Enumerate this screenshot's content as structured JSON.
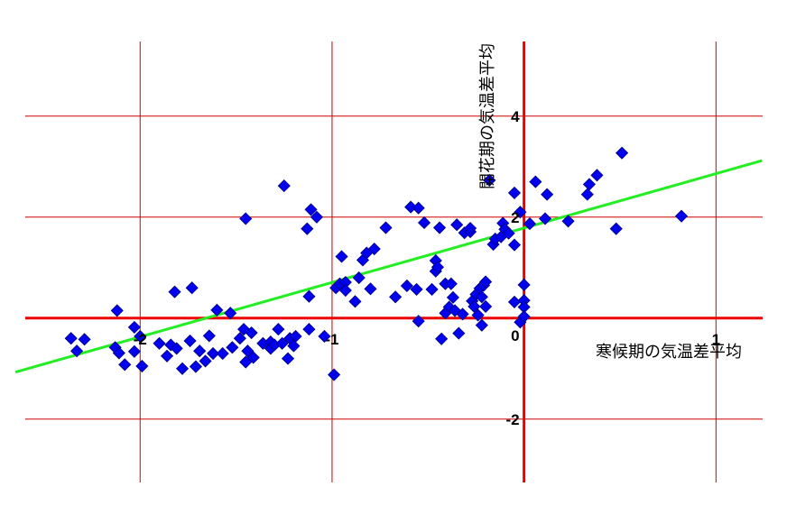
{
  "chart_data": {
    "type": "scatter",
    "title": "",
    "xlabel": "寒候期の気温差平均",
    "ylabel": "開花期の気温差平均",
    "xlim": [
      -2.73,
      1.37
    ],
    "ylim": [
      -3.7,
      6.3
    ],
    "x_ticks": [
      {
        "value": -2,
        "label": "-2"
      },
      {
        "value": -1,
        "label": "-1"
      },
      {
        "value": 0,
        "label": "0"
      },
      {
        "value": 1,
        "label": "1"
      }
    ],
    "y_ticks": [
      {
        "value": -2,
        "label": "-2"
      },
      {
        "value": 0,
        "label": "0"
      },
      {
        "value": 2,
        "label": "2"
      },
      {
        "value": 4,
        "label": "4"
      }
    ],
    "grid": true,
    "grid_x": [
      -2,
      -1,
      0,
      1
    ],
    "grid_y": [
      -2,
      0,
      2,
      4
    ],
    "colors": {
      "points": "#0000ee",
      "point_edge": "#000080",
      "trend": "#22ee22",
      "grid": "#cc0000",
      "axes": "#ee0000"
    },
    "trendline": {
      "x": [
        -2.65,
        1.24
      ],
      "y": [
        -1.07,
        3.12
      ]
    },
    "points": [
      {
        "x": -2.36,
        "y": -0.4
      },
      {
        "x": -2.33,
        "y": -0.65
      },
      {
        "x": -2.29,
        "y": -0.42
      },
      {
        "x": -2.13,
        "y": -0.58
      },
      {
        "x": -2.11,
        "y": -0.69
      },
      {
        "x": -2.12,
        "y": 0.15
      },
      {
        "x": -2.08,
        "y": -0.92
      },
      {
        "x": -2.03,
        "y": -0.18
      },
      {
        "x": -2.03,
        "y": -0.66
      },
      {
        "x": -2.0,
        "y": -0.36
      },
      {
        "x": -1.99,
        "y": -0.95
      },
      {
        "x": -1.9,
        "y": -0.5
      },
      {
        "x": -1.86,
        "y": -0.75
      },
      {
        "x": -1.84,
        "y": -0.53
      },
      {
        "x": -1.82,
        "y": 0.52
      },
      {
        "x": -1.81,
        "y": -0.6
      },
      {
        "x": -1.78,
        "y": -1.0
      },
      {
        "x": -1.73,
        "y": 0.6
      },
      {
        "x": -1.74,
        "y": -0.45
      },
      {
        "x": -1.71,
        "y": -0.96
      },
      {
        "x": -1.69,
        "y": -0.65
      },
      {
        "x": -1.66,
        "y": -0.85
      },
      {
        "x": -1.64,
        "y": -0.35
      },
      {
        "x": -1.62,
        "y": -0.7
      },
      {
        "x": -1.6,
        "y": 0.16
      },
      {
        "x": -1.57,
        "y": -0.7
      },
      {
        "x": -1.53,
        "y": 0.1
      },
      {
        "x": -1.52,
        "y": -0.58
      },
      {
        "x": -1.48,
        "y": -0.4
      },
      {
        "x": -1.46,
        "y": -0.22
      },
      {
        "x": -1.44,
        "y": -0.65
      },
      {
        "x": -1.42,
        "y": -0.29
      },
      {
        "x": -1.41,
        "y": -0.78
      },
      {
        "x": -1.36,
        "y": -0.5
      },
      {
        "x": -1.32,
        "y": -0.47
      },
      {
        "x": -1.45,
        "y": -0.87
      },
      {
        "x": -1.45,
        "y": 1.97
      },
      {
        "x": -1.32,
        "y": -0.6
      },
      {
        "x": -1.3,
        "y": -0.53
      },
      {
        "x": -1.28,
        "y": -0.22
      },
      {
        "x": -1.26,
        "y": -0.5
      },
      {
        "x": -1.25,
        "y": 2.62
      },
      {
        "x": -1.23,
        "y": -0.8
      },
      {
        "x": -1.22,
        "y": -0.4
      },
      {
        "x": -1.19,
        "y": -0.36
      },
      {
        "x": -1.2,
        "y": -0.55
      },
      {
        "x": -1.13,
        "y": 1.77
      },
      {
        "x": -1.12,
        "y": -0.22
      },
      {
        "x": -1.11,
        "y": 2.15
      },
      {
        "x": -1.12,
        "y": 0.43
      },
      {
        "x": -1.08,
        "y": 2.0
      },
      {
        "x": -1.04,
        "y": -0.36
      },
      {
        "x": -0.98,
        "y": 0.6
      },
      {
        "x": -0.96,
        "y": 0.68
      },
      {
        "x": -0.95,
        "y": 1.22
      },
      {
        "x": -0.93,
        "y": 0.71
      },
      {
        "x": -0.93,
        "y": 0.55
      },
      {
        "x": -0.99,
        "y": -1.12
      },
      {
        "x": -0.88,
        "y": 0.33
      },
      {
        "x": -0.86,
        "y": 0.8
      },
      {
        "x": -0.84,
        "y": 1.15
      },
      {
        "x": -0.82,
        "y": 1.29
      },
      {
        "x": -0.8,
        "y": 0.58
      },
      {
        "x": -0.78,
        "y": 1.37
      },
      {
        "x": -0.72,
        "y": 1.79
      },
      {
        "x": -0.67,
        "y": 0.42
      },
      {
        "x": -0.61,
        "y": 0.64
      },
      {
        "x": -0.59,
        "y": 2.2
      },
      {
        "x": -0.56,
        "y": 0.57
      },
      {
        "x": -0.55,
        "y": 2.18
      },
      {
        "x": -0.52,
        "y": 1.89
      },
      {
        "x": -0.55,
        "y": -0.06
      },
      {
        "x": -0.48,
        "y": 0.57
      },
      {
        "x": -0.46,
        "y": 1.14
      },
      {
        "x": -0.46,
        "y": 0.93
      },
      {
        "x": -0.45,
        "y": 1.01
      },
      {
        "x": -0.44,
        "y": 1.79
      },
      {
        "x": -0.43,
        "y": -0.41
      },
      {
        "x": -0.41,
        "y": 0.68
      },
      {
        "x": -0.41,
        "y": 0.1
      },
      {
        "x": -0.39,
        "y": 0.22
      },
      {
        "x": -0.38,
        "y": 0.68
      },
      {
        "x": -0.37,
        "y": 0.41
      },
      {
        "x": -0.35,
        "y": 1.85
      },
      {
        "x": -0.36,
        "y": 0.15
      },
      {
        "x": -0.34,
        "y": -0.3
      },
      {
        "x": -0.32,
        "y": 0.08
      },
      {
        "x": -0.31,
        "y": 1.69
      },
      {
        "x": -0.28,
        "y": 1.71
      },
      {
        "x": -0.28,
        "y": 1.78
      },
      {
        "x": -0.27,
        "y": 0.34
      },
      {
        "x": -0.25,
        "y": 0.47
      },
      {
        "x": -0.26,
        "y": 0.23
      },
      {
        "x": -0.24,
        "y": 0.06
      },
      {
        "x": -0.23,
        "y": 0.59
      },
      {
        "x": -0.22,
        "y": -0.14
      },
      {
        "x": -0.22,
        "y": 0.42
      },
      {
        "x": -0.21,
        "y": 0.65
      },
      {
        "x": -0.2,
        "y": 0.72
      },
      {
        "x": -0.2,
        "y": 0.23
      },
      {
        "x": -0.18,
        "y": 2.73
      },
      {
        "x": -0.16,
        "y": 1.46
      },
      {
        "x": -0.15,
        "y": 1.57
      },
      {
        "x": -0.12,
        "y": 1.61
      },
      {
        "x": -0.11,
        "y": 1.88
      },
      {
        "x": -0.1,
        "y": 1.76
      },
      {
        "x": -0.08,
        "y": 1.68
      },
      {
        "x": -0.05,
        "y": 2.48
      },
      {
        "x": -0.05,
        "y": 0.32
      },
      {
        "x": -0.05,
        "y": 1.45
      },
      {
        "x": -0.02,
        "y": 2.1
      },
      {
        "x": -0.02,
        "y": -0.08
      },
      {
        "x": 0.0,
        "y": 0.66
      },
      {
        "x": 0.0,
        "y": 0.35
      },
      {
        "x": 0.0,
        "y": 0.22
      },
      {
        "x": 0.0,
        "y": 0.03
      },
      {
        "x": 0.03,
        "y": 1.87
      },
      {
        "x": 0.06,
        "y": 2.7
      },
      {
        "x": 0.11,
        "y": 1.97
      },
      {
        "x": 0.12,
        "y": 2.45
      },
      {
        "x": 0.23,
        "y": 1.92
      },
      {
        "x": 0.33,
        "y": 2.45
      },
      {
        "x": 0.34,
        "y": 2.65
      },
      {
        "x": 0.38,
        "y": 2.83
      },
      {
        "x": 0.48,
        "y": 1.77
      },
      {
        "x": 0.51,
        "y": 3.27
      },
      {
        "x": 0.82,
        "y": 2.02
      }
    ]
  }
}
